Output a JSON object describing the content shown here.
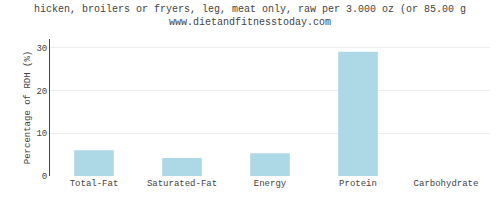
{
  "chart_data": {
    "type": "bar",
    "title": "hicken, broilers or fryers, leg, meat only, raw per 3.000 oz (or 85.00 g",
    "subtitle": "www.dietandfitnesstoday.com",
    "categories": [
      "Total-Fat",
      "Saturated-Fat",
      "Energy",
      "Protein",
      "Carbohydrate"
    ],
    "values": [
      6.0,
      4.2,
      5.3,
      29.0,
      0.0
    ],
    "color": "#add8e6",
    "ylabel": "Percentage of RDH (%)",
    "ylim": [
      0,
      32
    ],
    "yticks": [
      0,
      10,
      20,
      30
    ],
    "grid": true
  }
}
